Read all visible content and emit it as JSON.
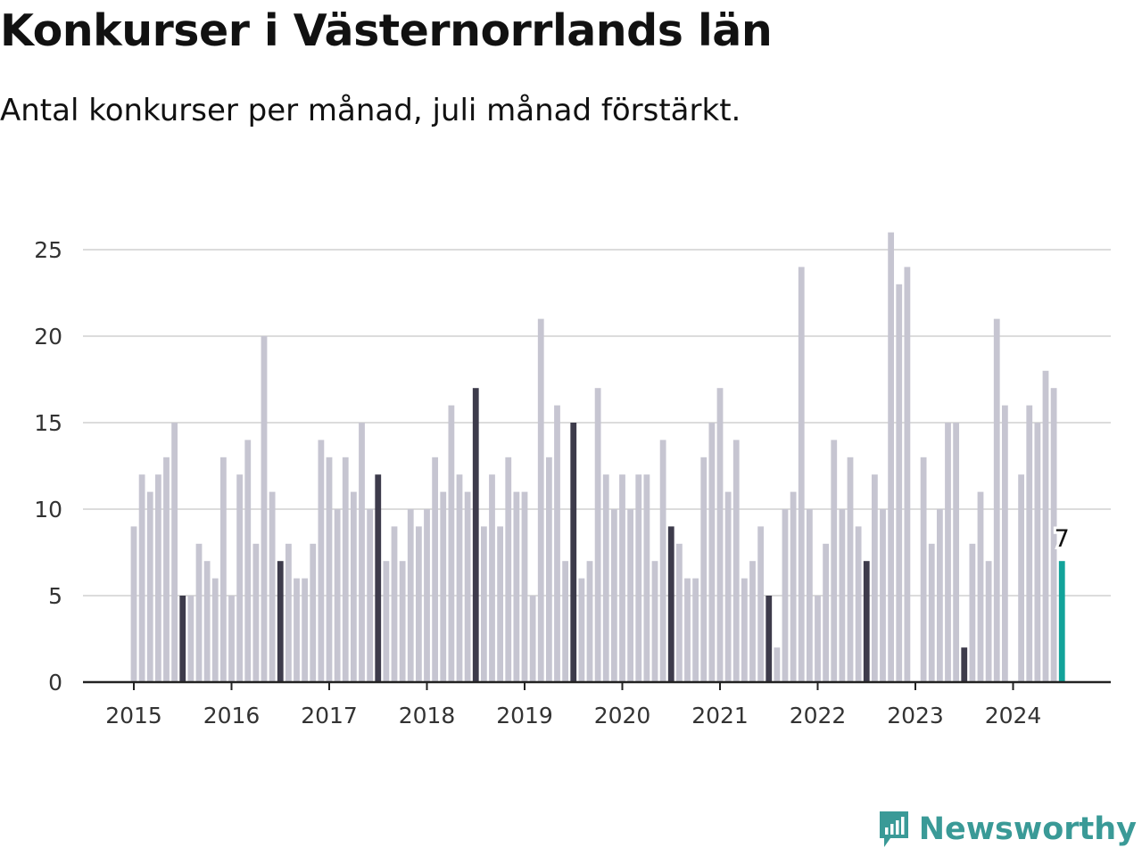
{
  "title": "Konkurser i Västernorrlands län",
  "subtitle": "Antal konkurser per månad, juli månad förstärkt.",
  "brand": {
    "name": "Newsworthy",
    "icon": "chart-speech-bubble-icon"
  },
  "colors": {
    "default": "#c6c5d1",
    "july": "#3d3b4b",
    "latest": "#12a39a",
    "grid": "#dcdcdc",
    "axis": "#222222"
  },
  "chart_data": {
    "type": "bar",
    "title": "Konkurser i Västernorrlands län",
    "subtitle": "Antal konkurser per månad, juli månad förstärkt.",
    "xlabel": "",
    "ylabel": "",
    "ylim": [
      0,
      27
    ],
    "yticks": [
      0,
      5,
      10,
      15,
      20,
      25
    ],
    "xtick_labels": [
      "2015",
      "2016",
      "2017",
      "2018",
      "2019",
      "2020",
      "2021",
      "2022",
      "2023",
      "2024"
    ],
    "start": "2015-01",
    "grid": true,
    "highlight": "juli",
    "latest_label": "7",
    "values": [
      9,
      12,
      11,
      12,
      13,
      15,
      5,
      5,
      8,
      7,
      6,
      13,
      5,
      12,
      14,
      8,
      20,
      11,
      7,
      8,
      6,
      6,
      8,
      14,
      13,
      10,
      13,
      11,
      15,
      10,
      12,
      7,
      9,
      7,
      10,
      9,
      10,
      13,
      11,
      16,
      12,
      11,
      17,
      9,
      12,
      9,
      13,
      11,
      11,
      5,
      21,
      13,
      16,
      7,
      15,
      6,
      7,
      17,
      12,
      10,
      12,
      10,
      12,
      12,
      7,
      14,
      9,
      8,
      6,
      6,
      13,
      15,
      17,
      11,
      14,
      6,
      7,
      9,
      5,
      2,
      10,
      11,
      24,
      10,
      5,
      8,
      14,
      10,
      13,
      9,
      7,
      12,
      10,
      26,
      23,
      24,
      0,
      13,
      8,
      10,
      15,
      15,
      2,
      8,
      11,
      7,
      21,
      16,
      0,
      12,
      16,
      15,
      18,
      17,
      7
    ]
  }
}
